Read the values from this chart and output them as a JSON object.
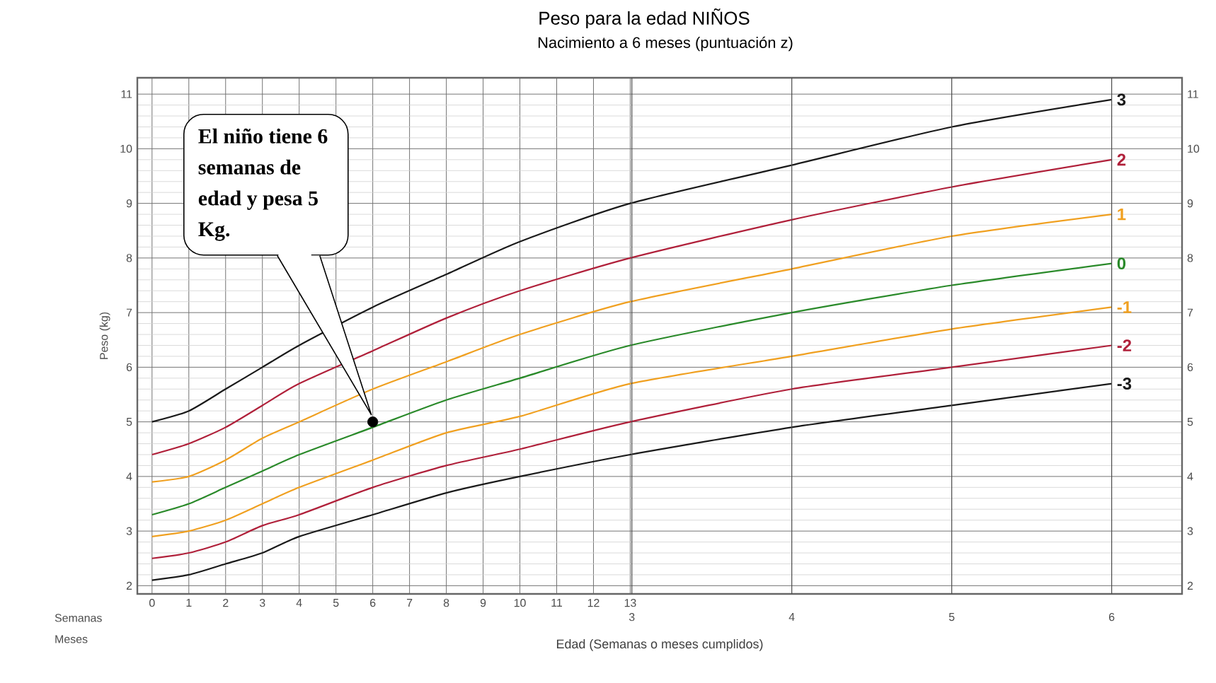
{
  "chart_data": {
    "type": "line",
    "title": "Peso para la edad NIÑOS",
    "subtitle": "Nacimiento a 6 meses (puntuación z)",
    "xlabel": "Edad (Semanas o meses cumplidos)",
    "ylabel": "Peso (kg)",
    "x": [
      0,
      1,
      2,
      3,
      4,
      6,
      8,
      10,
      13,
      17.39,
      21.74,
      26.09
    ],
    "series": [
      {
        "name": "3",
        "color": "#1a1a1a",
        "values": [
          5.0,
          5.2,
          5.6,
          6.0,
          6.4,
          7.1,
          7.7,
          8.3,
          9.0,
          9.7,
          10.4,
          10.9
        ]
      },
      {
        "name": "2",
        "color": "#b0203a",
        "values": [
          4.4,
          4.6,
          4.9,
          5.3,
          5.7,
          6.3,
          6.9,
          7.4,
          8.0,
          8.7,
          9.3,
          9.8
        ]
      },
      {
        "name": "1",
        "color": "#f0a020",
        "values": [
          3.9,
          4.0,
          4.3,
          4.7,
          5.0,
          5.6,
          6.1,
          6.6,
          7.2,
          7.8,
          8.4,
          8.8
        ]
      },
      {
        "name": "0",
        "color": "#2a8a2a",
        "values": [
          3.3,
          3.5,
          3.8,
          4.1,
          4.4,
          4.9,
          5.4,
          5.8,
          6.4,
          7.0,
          7.5,
          7.9
        ]
      },
      {
        "name": "-1",
        "color": "#f0a020",
        "values": [
          2.9,
          3.0,
          3.2,
          3.5,
          3.8,
          4.3,
          4.8,
          5.1,
          5.7,
          6.2,
          6.7,
          7.1
        ]
      },
      {
        "name": "-2",
        "color": "#b0203a",
        "values": [
          2.5,
          2.6,
          2.8,
          3.1,
          3.3,
          3.8,
          4.2,
          4.5,
          5.0,
          5.6,
          6.0,
          6.4
        ]
      },
      {
        "name": "-3",
        "color": "#1a1a1a",
        "values": [
          2.1,
          2.2,
          2.4,
          2.6,
          2.9,
          3.3,
          3.7,
          4.0,
          4.4,
          4.9,
          5.3,
          5.7
        ]
      },
      {
        "type": "scatter",
        "color": "#000000",
        "x": [
          6
        ],
        "values": [
          5
        ]
      }
    ],
    "xlim": [
      -0.4,
      28
    ],
    "ylim": [
      1.85,
      11.3
    ],
    "xticks": [
      0,
      1,
      2,
      3,
      4,
      5,
      6,
      7,
      8,
      9,
      10,
      11,
      12,
      13
    ],
    "x2lim": [
      -0.092,
      6.44
    ],
    "x2ticks": [
      3,
      4,
      5,
      6
    ],
    "yticks": [
      2,
      3,
      4,
      5,
      6,
      7,
      8,
      9,
      10,
      11
    ],
    "y2lim": [
      1.85,
      11.3
    ],
    "y2ticks": [
      2,
      3,
      4,
      5,
      6,
      7,
      8,
      9,
      10,
      11
    ],
    "grid": true,
    "line_style": "solid",
    "annotations": [
      "Semanas",
      "Meses",
      "El niño tiene 6 semanas de edad y pesa 5 Kg."
    ]
  }
}
